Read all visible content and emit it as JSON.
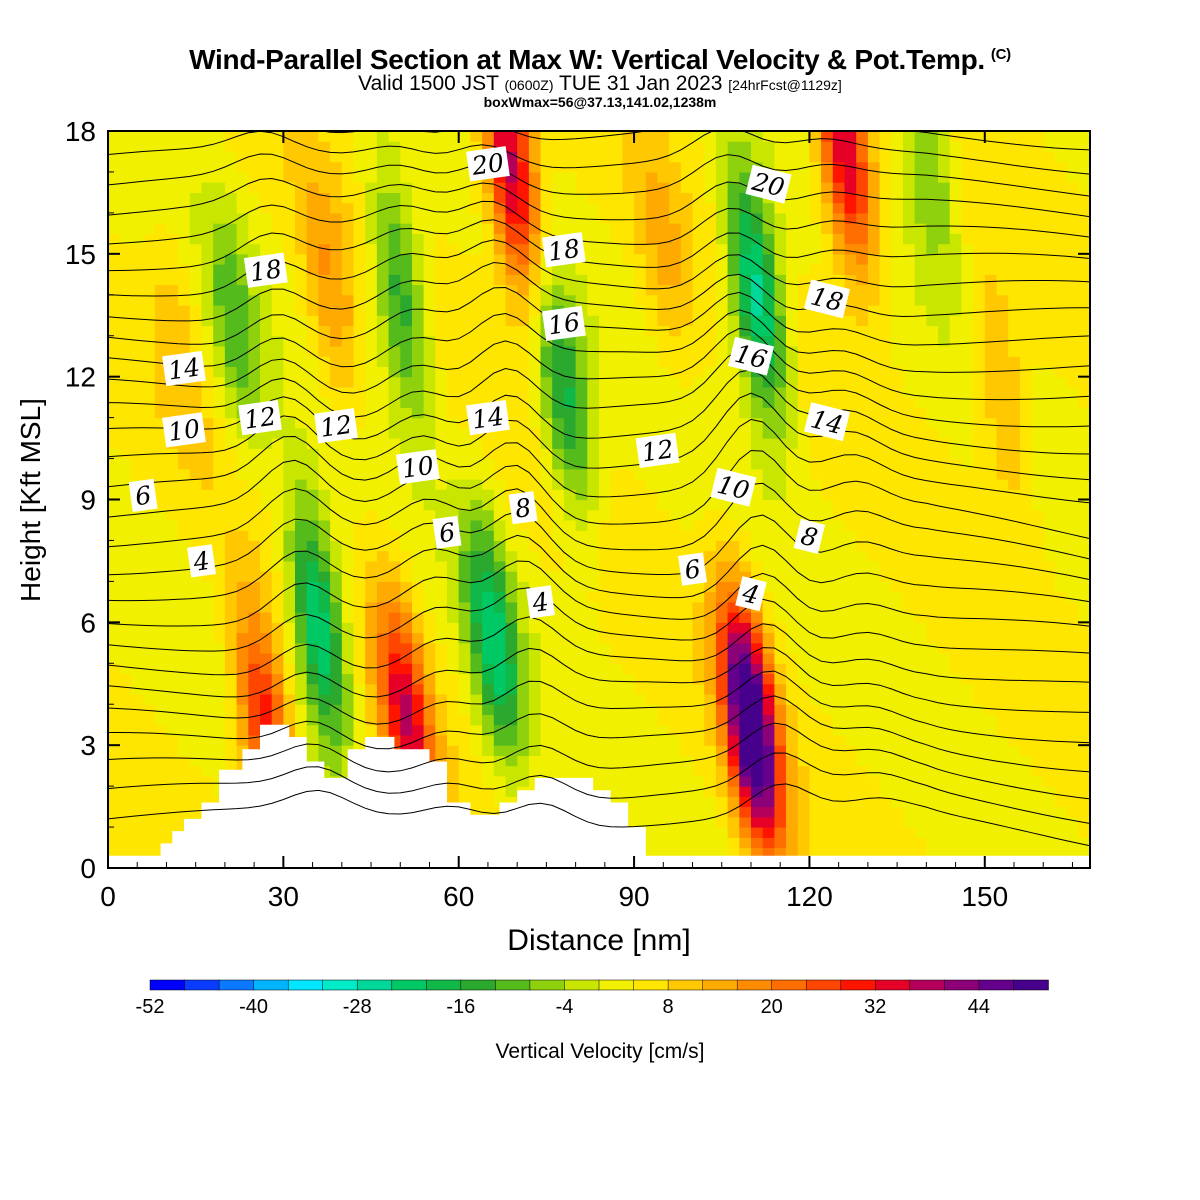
{
  "title": {
    "main": "Wind-Parallel Section at Max W: Vertical Velocity & Pot.Temp.",
    "copyright": "(C)",
    "valid_a": "Valid 1500 JST",
    "valid_b": "(0600Z)",
    "valid_c": "TUE 31 Jan 2023",
    "valid_d": "[24hrFcst@1129z]",
    "box": "boxWmax=56@37.13,141.02,1238m"
  },
  "chart_data": {
    "type": "heatmap",
    "xlabel": "Distance [nm]",
    "ylabel": "Height [Kft MSL]",
    "xlim": [
      0,
      168
    ],
    "ylim": [
      0,
      18
    ],
    "x_ticks": [
      "0",
      "30",
      "60",
      "90",
      "120",
      "150"
    ],
    "x_tick_values": [
      0,
      30,
      60,
      90,
      120,
      150
    ],
    "y_ticks": [
      "0",
      "3",
      "6",
      "9",
      "12",
      "15",
      "18"
    ],
    "y_tick_values": [
      0,
      3,
      6,
      9,
      12,
      15,
      18
    ],
    "colorbar": {
      "label": "Vertical Velocity [cm/s]",
      "tick_labels": [
        "-52",
        "-40",
        "-28",
        "-16",
        "-4",
        "8",
        "20",
        "32",
        "44"
      ],
      "tick_values": [
        -52,
        -40,
        -28,
        -16,
        -4,
        8,
        20,
        32,
        44
      ],
      "levels": [
        -52,
        -48,
        -44,
        -40,
        -36,
        -32,
        -28,
        -24,
        -20,
        -16,
        -12,
        -8,
        -4,
        0,
        4,
        8,
        12,
        16,
        20,
        24,
        28,
        32,
        36,
        40,
        44,
        48,
        52
      ],
      "colors": [
        "#0000ff",
        "#0a3cff",
        "#0a78ff",
        "#00b4ff",
        "#00e6ff",
        "#00ebc8",
        "#00d89a",
        "#00c864",
        "#10b848",
        "#2ba82e",
        "#55bb1d",
        "#8fd10c",
        "#c8e600",
        "#f0f000",
        "#ffe600",
        "#ffc800",
        "#ffaa00",
        "#ff8c00",
        "#ff6e00",
        "#ff4600",
        "#ff1400",
        "#e60028",
        "#b4005a",
        "#8c0078",
        "#64008c",
        "#46008c"
      ]
    },
    "terrain_profile": [
      [
        0,
        0.3
      ],
      [
        9,
        0.3
      ],
      [
        9,
        0.6
      ],
      [
        11,
        0.6
      ],
      [
        11,
        0.9
      ],
      [
        13,
        0.9
      ],
      [
        13,
        1.2
      ],
      [
        16,
        1.2
      ],
      [
        16,
        1.6
      ],
      [
        19,
        1.6
      ],
      [
        19,
        2.4
      ],
      [
        23,
        2.4
      ],
      [
        23,
        2.9
      ],
      [
        26,
        2.9
      ],
      [
        26,
        3.5
      ],
      [
        31,
        3.5
      ],
      [
        31,
        3.2
      ],
      [
        34,
        3.2
      ],
      [
        34,
        2.6
      ],
      [
        37,
        2.6
      ],
      [
        37,
        2.2
      ],
      [
        41,
        2.2
      ],
      [
        41,
        2.9
      ],
      [
        44,
        2.9
      ],
      [
        44,
        3.2
      ],
      [
        49,
        3.2
      ],
      [
        49,
        2.9
      ],
      [
        55,
        2.9
      ],
      [
        55,
        2.6
      ],
      [
        58,
        2.6
      ],
      [
        58,
        1.6
      ],
      [
        62,
        1.6
      ],
      [
        62,
        1.3
      ],
      [
        67,
        1.3
      ],
      [
        67,
        1.6
      ],
      [
        70,
        1.6
      ],
      [
        70,
        1.9
      ],
      [
        73,
        1.9
      ],
      [
        73,
        2.2
      ],
      [
        83,
        2.2
      ],
      [
        83,
        1.9
      ],
      [
        86,
        1.9
      ],
      [
        86,
        1.6
      ],
      [
        89,
        1.6
      ],
      [
        89,
        1.0
      ],
      [
        92,
        1.0
      ],
      [
        92,
        0.3
      ],
      [
        168,
        0.3
      ]
    ],
    "updraft_cells": [
      {
        "x": 110,
        "z": 3.5,
        "w": 56
      },
      {
        "x": 69,
        "z": 17.0,
        "w": 36
      },
      {
        "x": 126,
        "z": 17.5,
        "w": 34
      },
      {
        "x": 27,
        "z": 3.3,
        "w": 30
      },
      {
        "x": 51,
        "z": 3.7,
        "w": 30
      },
      {
        "x": 38,
        "z": 14.0,
        "w": 12
      },
      {
        "x": 12,
        "z": 13.0,
        "w": 6
      },
      {
        "x": 153,
        "z": 11.5,
        "w": 10
      },
      {
        "x": 95,
        "z": 15.0,
        "w": 8
      }
    ],
    "downdraft_cells": [
      {
        "x": 36,
        "z": 6.0,
        "w": -30
      },
      {
        "x": 66,
        "z": 5.5,
        "w": -26
      },
      {
        "x": 111,
        "z": 14.0,
        "w": -32
      },
      {
        "x": 50,
        "z": 14.0,
        "w": -20
      },
      {
        "x": 78,
        "z": 11.5,
        "w": -22
      },
      {
        "x": 22,
        "z": 13.0,
        "w": -14
      },
      {
        "x": 140,
        "z": 17.5,
        "w": -14
      }
    ],
    "theta_contour_labels": [
      {
        "text": "20",
        "x": 65,
        "z": 17.2
      },
      {
        "text": "20",
        "x": 113,
        "z": 16.7
      },
      {
        "text": "18",
        "x": 27,
        "z": 14.6
      },
      {
        "text": "18",
        "x": 78,
        "z": 15.1
      },
      {
        "text": "18",
        "x": 123,
        "z": 13.9
      },
      {
        "text": "16",
        "x": 78,
        "z": 13.3
      },
      {
        "text": "16",
        "x": 110,
        "z": 12.5
      },
      {
        "text": "14",
        "x": 13,
        "z": 12.2
      },
      {
        "text": "14",
        "x": 65,
        "z": 11.0
      },
      {
        "text": "14",
        "x": 123,
        "z": 10.9
      },
      {
        "text": "12",
        "x": 26,
        "z": 11.0
      },
      {
        "text": "12",
        "x": 39,
        "z": 10.8
      },
      {
        "text": "12",
        "x": 94,
        "z": 10.2
      },
      {
        "text": "10",
        "x": 13,
        "z": 10.7
      },
      {
        "text": "10",
        "x": 53,
        "z": 9.8
      },
      {
        "text": "10",
        "x": 107,
        "z": 9.3
      },
      {
        "text": "8",
        "x": 71,
        "z": 8.8
      },
      {
        "text": "8",
        "x": 120,
        "z": 8.1
      },
      {
        "text": "6",
        "x": 6,
        "z": 9.1
      },
      {
        "text": "6",
        "x": 58,
        "z": 8.2
      },
      {
        "text": "6",
        "x": 100,
        "z": 7.3
      },
      {
        "text": "4",
        "x": 16,
        "z": 7.5
      },
      {
        "text": "4",
        "x": 74,
        "z": 6.5
      },
      {
        "text": "4",
        "x": 110,
        "z": 6.7
      }
    ]
  }
}
